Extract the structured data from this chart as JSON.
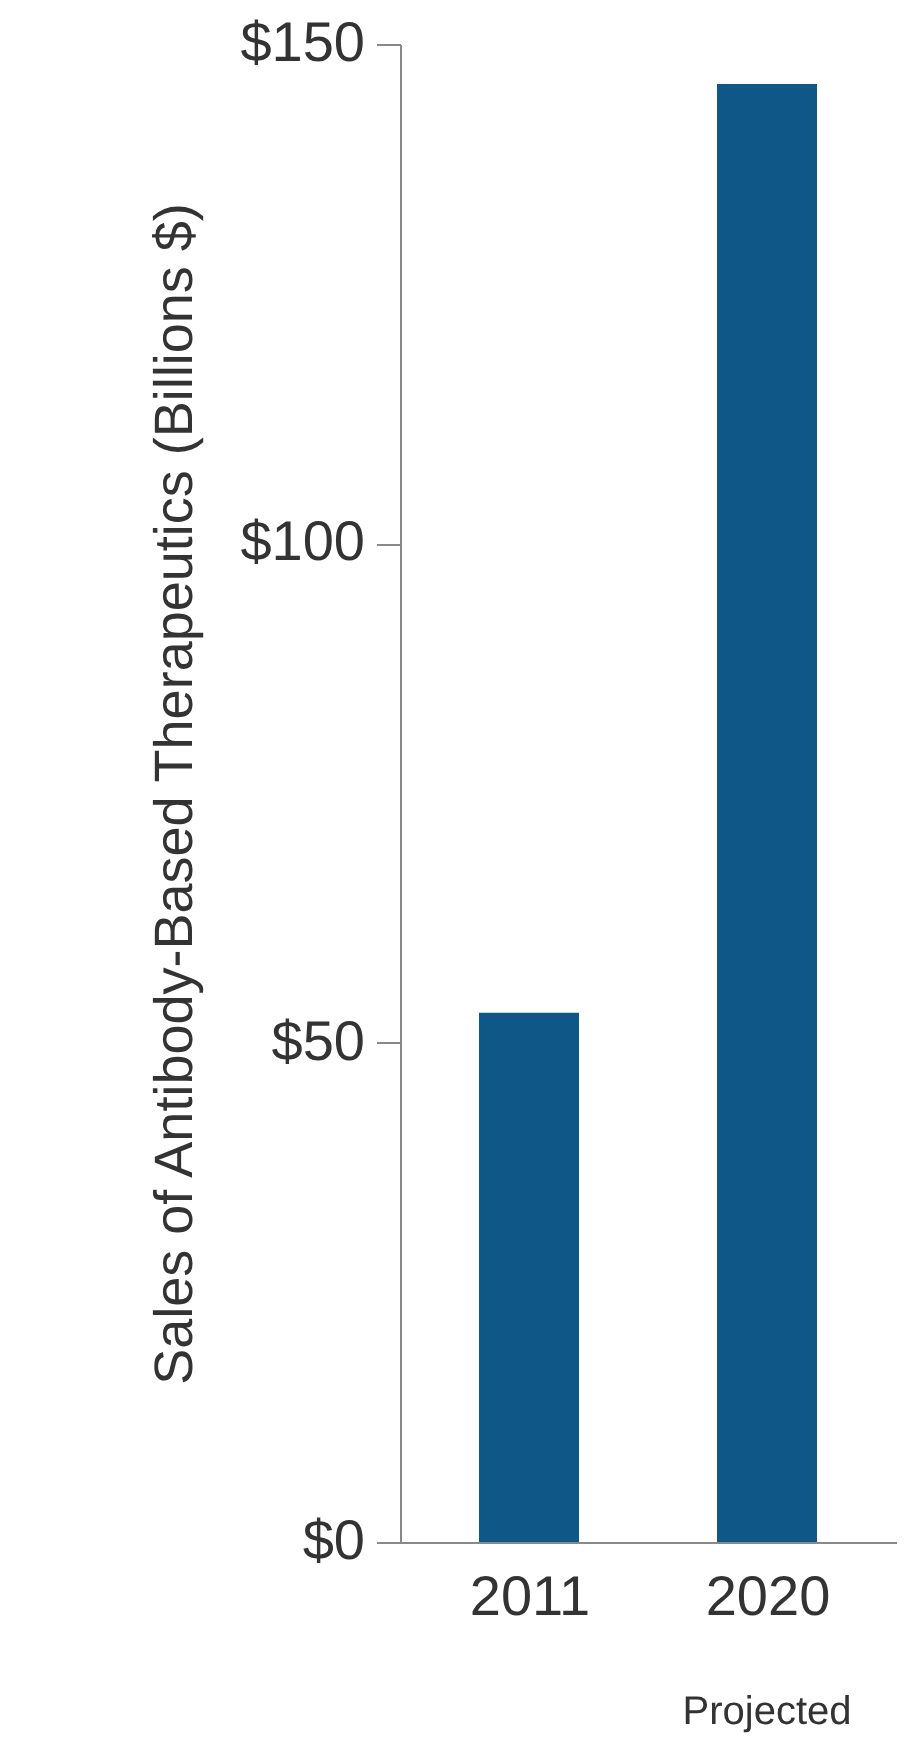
{
  "chart_data": {
    "type": "bar",
    "ylabel": "Sales of Antibody-Based Therapeutics (Billions $)",
    "categories": [
      "2011",
      "2020"
    ],
    "values": [
      53,
      146
    ],
    "color": "#0e5787",
    "ylim": [
      0,
      150
    ],
    "yticks": [
      {
        "value": 0,
        "label": "$0"
      },
      {
        "value": 50,
        "label": "$50"
      },
      {
        "value": 100,
        "label": "$100"
      },
      {
        "value": 150,
        "label": "$150"
      }
    ],
    "grid": false,
    "annotations": [
      "Projected"
    ]
  }
}
